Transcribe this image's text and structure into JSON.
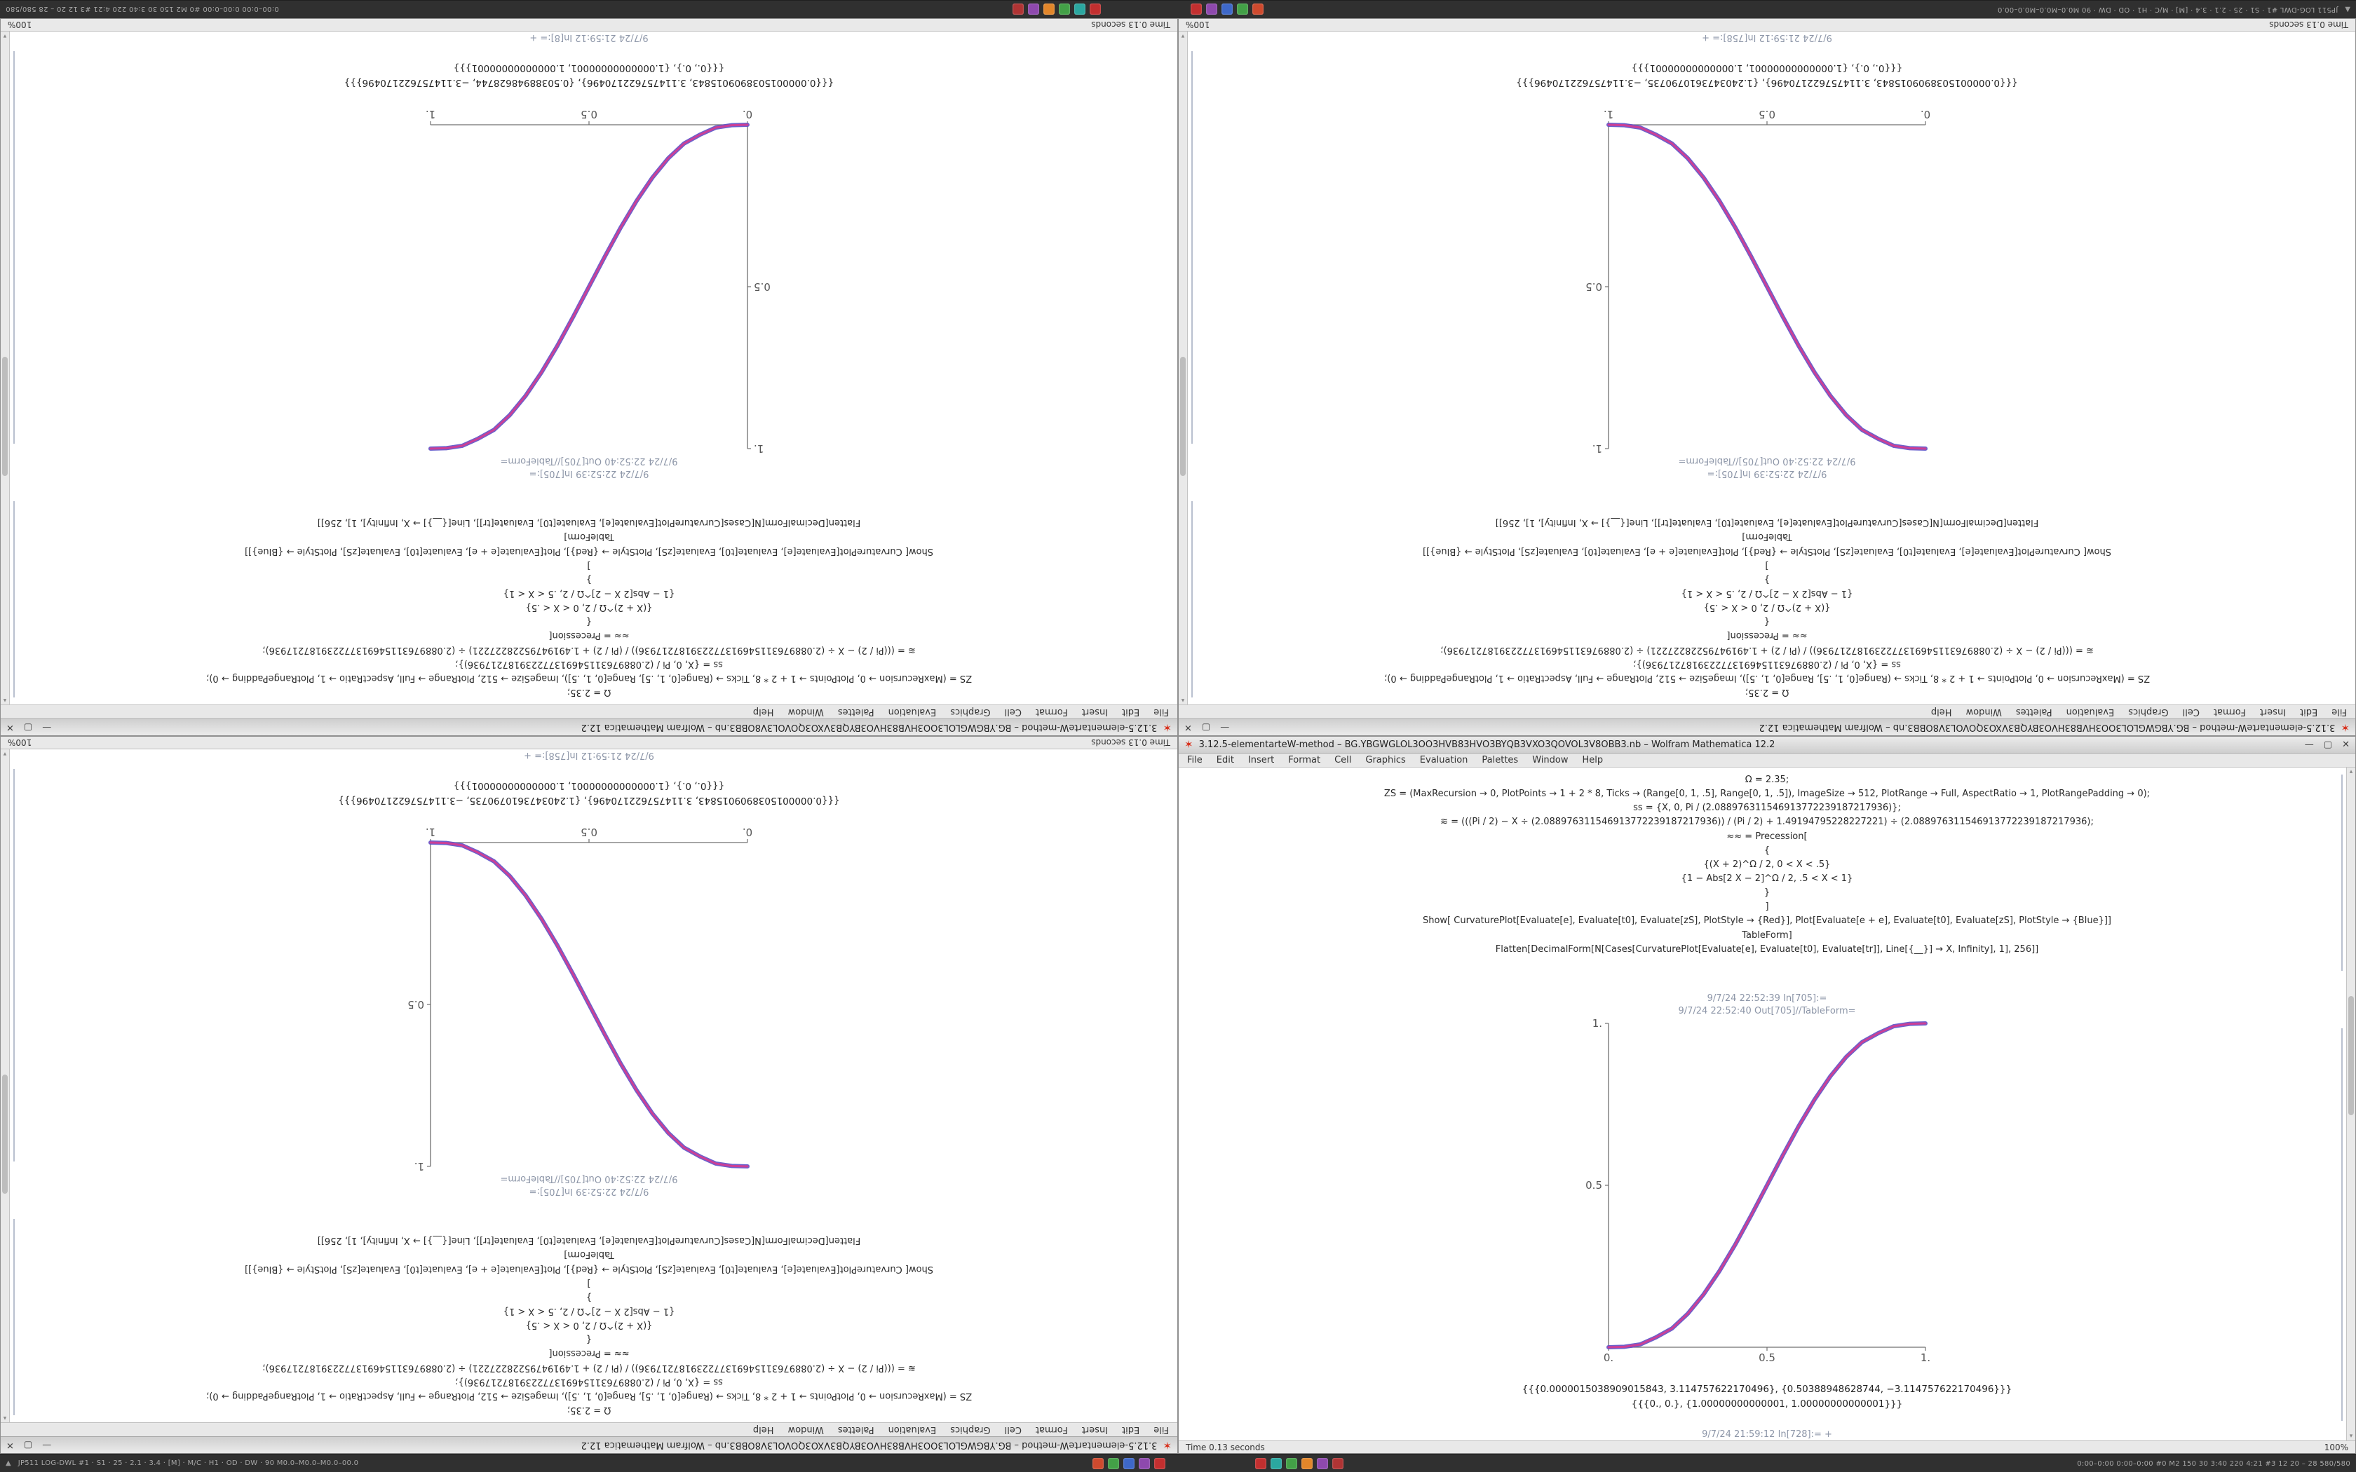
{
  "desktop": {
    "taskbar": {
      "left_arrow": "▲",
      "left_text": "JP511    LOG-DWL #1 · S1 · 25 · 2.1 · 3.4 · [M] · M/C · H1 · OD · DW · 90    M0.0–M0.0–M0.0–00.0",
      "right_text": "0:00–0:00   0:00–0:00   #0   M2 150 30   3:40 220 4:21   #3 12 20 – 28   580/580",
      "icon_groups": {
        "a": [
          "#cf4a2e",
          "#43a047",
          "#3e68c9",
          "#8e49ad",
          "#c22f2f"
        ],
        "b": [
          "#c22f2f",
          "#2ba7a0",
          "#43a047",
          "#e2862a",
          "#8e49ad",
          "#b03434"
        ]
      }
    }
  },
  "shared": {
    "window_title": "3.12.5-elementarteW-method – BG.YBGWGLOL3OO3HVB83HVO3BYQB3VXO3QOVOL3V8OBB3.nb – Wolfram Mathematica 12.2",
    "menu_items": [
      "File",
      "Edit",
      "Insert",
      "Format",
      "Cell",
      "Graphics",
      "Evaluation",
      "Palettes",
      "Window",
      "Help"
    ],
    "controls": {
      "minimize": "—",
      "maximize": "▢",
      "close": "✕"
    },
    "status_left": "Time 0.13 seconds",
    "status_right": "100%",
    "scroll_up": "▴",
    "scroll_down": "▾"
  },
  "notebooks": {
    "A": {
      "code": "Ω = 2.35;\nZS = (MaxRecursion → 0, PlotPoints → 1 + 2 * 8, Ticks → (Range[0, 1, .5], Range[0, 1, .5]), ImageSize → 512, PlotRange → Full, AspectRatio → 1, PlotRangePadding → 0);\nss = {X, 0, Pi / (2.088976311546913772239187217936)};\n≋ = (((Pi / 2) − X ÷ (2.088976311546913772239187217936)) / (Pi / 2) + 1.49194795228227221) ÷ (2.088976311546913772239187217936);\n≈≈ = Precession[\n{\n{(X + 2)^Ω / 2, 0 < X < .5}\n{1 − Abs[2 X − 2]^Ω / 2, .5 < X < 1}\n}\n]\nShow[  CurvaturePlot[Evaluate[e], Evaluate[t0], Evaluate[zS], PlotStyle → {Red}],  Plot[Evaluate[e + e], Evaluate[t0], Evaluate[zS], PlotStyle → {Blue}]]\nTableForm]\nFlatten[DecimalForm[N[Cases[CurvaturePlot[Evaluate[e], Evaluate[t0], Evaluate[tr]], Line[{__}] → X, Infinity], 1], 256]]",
      "in_stamp": "9/7/24 22:52:39  In[705]:=",
      "out_stamp": "9/7/24 22:52:40  Out[705]//TableForm=",
      "outputs": "{{{0.0000015038909015843, 3.114757622170496}, {0.50388948628744, −3.114757622170496}}}\n{{{0., 0.}, {1.00000000000001, 1.00000000000001}}}"
    },
    "B": {
      "code": "Ω = 2.35;\nZS = (MaxRecursion → 0, PlotPoints → 1 + 2 * 8, Ticks → (Range[0, 1, .5], Range[0, 1, .5]), ImageSize → 512, PlotRange → Full, AspectRatio → 1, PlotRangePadding → 0);\nss = {X, 0, Pi / (2.088976311546913772239187217936)};\n≋ = (((Pi / 2) − X ÷ (2.088976311546913772239187217936)) / (Pi / 2) + 1.49194795228227221) ÷ (2.088976311546913772239187217936);\n≈≈ = Precession[\n{\n{(X + 2)^Ω / 2, 0 < X < .5}\n{1 − Abs[2 X − 2]^Ω / 2, .5 < X < 1}\n}\n]\nShow[  CurvaturePlot[Evaluate[e], Evaluate[t0], Evaluate[zS], PlotStyle → {Red}],  Plot[Evaluate[e + e], Evaluate[t0], Evaluate[zS], PlotStyle → {Blue}]]\nTableForm]\nFlatten[DecimalForm[N[Cases[CurvaturePlot[Evaluate[e], Evaluate[t0], Evaluate[tr]], Line[{__}] → X, Infinity], 1], 256]]",
      "in_stamp": "9/7/24 22:52:39  In[705]:=",
      "out_stamp": "9/7/24 22:52:40  Out[705]//TableForm=",
      "outputs": "{{{0.0000015038909015843, 3.114757622170496}, {1.2403473610790735, −3.114757622170496}}}\n{{{0., 0.}, {1.00000000000001, 1.00000000000001}}}"
    }
  },
  "quadrants": [
    {
      "pos": "top-left",
      "variant": "A",
      "rotated": true,
      "bottom_stamp": "9/7/24 21:59:12  In[8]:= +"
    },
    {
      "pos": "top-right",
      "variant": "B",
      "rotated": true,
      "bottom_stamp": "9/7/24 21:59:12  In[758]:= +"
    },
    {
      "pos": "bottom-left",
      "variant": "B",
      "rotated": true,
      "bottom_stamp": "9/7/24 21:59:12  In[758]:= +"
    },
    {
      "pos": "bottom-right",
      "variant": "A",
      "rotated": false,
      "bottom_stamp": "9/7/24 21:59:12  In[728]:= +"
    }
  ],
  "chart_data": [
    {
      "id": "A",
      "type": "line",
      "title": "Out[705]//TableForm",
      "xlabel": "",
      "ylabel": "",
      "xlim": [
        0,
        1
      ],
      "ylim": [
        0,
        1
      ],
      "grid": false,
      "legend": "none",
      "axis_side": "left",
      "x": [
        0,
        0.05,
        0.1,
        0.15,
        0.2,
        0.25,
        0.3,
        0.35,
        0.4,
        0.45,
        0.5,
        0.55,
        0.6,
        0.65,
        0.7,
        0.75,
        0.8,
        0.85,
        0.9,
        0.95,
        1
      ],
      "series": [
        {
          "name": "CurvaturePlot (Red)",
          "color": "#cb3f96",
          "values": [
            0,
            0.0012,
            0.0086,
            0.0307,
            0.0579,
            0.1035,
            0.1631,
            0.2352,
            0.3174,
            0.4069,
            0.5,
            0.5931,
            0.6826,
            0.7648,
            0.8369,
            0.8965,
            0.9421,
            0.9693,
            0.9914,
            0.9988,
            1
          ]
        },
        {
          "name": "Plot (Blue)",
          "color": "#5b50c8",
          "values": [
            0,
            0.0012,
            0.0086,
            0.0307,
            0.0579,
            0.1035,
            0.1631,
            0.2352,
            0.3174,
            0.4069,
            0.5,
            0.5931,
            0.6826,
            0.7648,
            0.8369,
            0.8965,
            0.9421,
            0.9693,
            0.9914,
            0.9988,
            1
          ]
        }
      ],
      "x_ticks": [
        {
          "v": 0,
          "label": "0."
        },
        {
          "v": 0.5,
          "label": "0.5"
        },
        {
          "v": 1,
          "label": "1."
        }
      ],
      "y_ticks": [
        {
          "v": 0.5,
          "label": "0.5"
        },
        {
          "v": 1,
          "label": "1."
        }
      ]
    },
    {
      "id": "B",
      "type": "line",
      "title": "Out[705]//TableForm",
      "xlabel": "",
      "ylabel": "",
      "xlim": [
        0,
        1
      ],
      "ylim": [
        0,
        1
      ],
      "grid": false,
      "legend": "none",
      "axis_side": "right",
      "x": [
        0,
        0.05,
        0.1,
        0.15,
        0.2,
        0.25,
        0.3,
        0.35,
        0.4,
        0.45,
        0.5,
        0.55,
        0.6,
        0.65,
        0.7,
        0.75,
        0.8,
        0.85,
        0.9,
        0.95,
        1
      ],
      "series": [
        {
          "name": "CurvaturePlot (Red)",
          "color": "#cb3f96",
          "values": [
            1,
            0.9988,
            0.9914,
            0.9693,
            0.9421,
            0.8965,
            0.8369,
            0.7648,
            0.6826,
            0.5931,
            0.5,
            0.4069,
            0.3174,
            0.2352,
            0.1631,
            0.1035,
            0.0579,
            0.0307,
            0.0086,
            0.0012,
            0
          ]
        },
        {
          "name": "Plot (Blue)",
          "color": "#5b50c8",
          "values": [
            1,
            0.9988,
            0.9914,
            0.9693,
            0.9421,
            0.8965,
            0.8369,
            0.7648,
            0.6826,
            0.5931,
            0.5,
            0.4069,
            0.3174,
            0.2352,
            0.1631,
            0.1035,
            0.0579,
            0.0307,
            0.0086,
            0.0012,
            0
          ]
        }
      ],
      "x_ticks": [
        {
          "v": 0,
          "label": "0."
        },
        {
          "v": 0.5,
          "label": "0.5"
        },
        {
          "v": 1,
          "label": "1."
        }
      ],
      "y_ticks": [
        {
          "v": 0.5,
          "label": "0.5"
        },
        {
          "v": 1,
          "label": "1."
        }
      ]
    }
  ]
}
